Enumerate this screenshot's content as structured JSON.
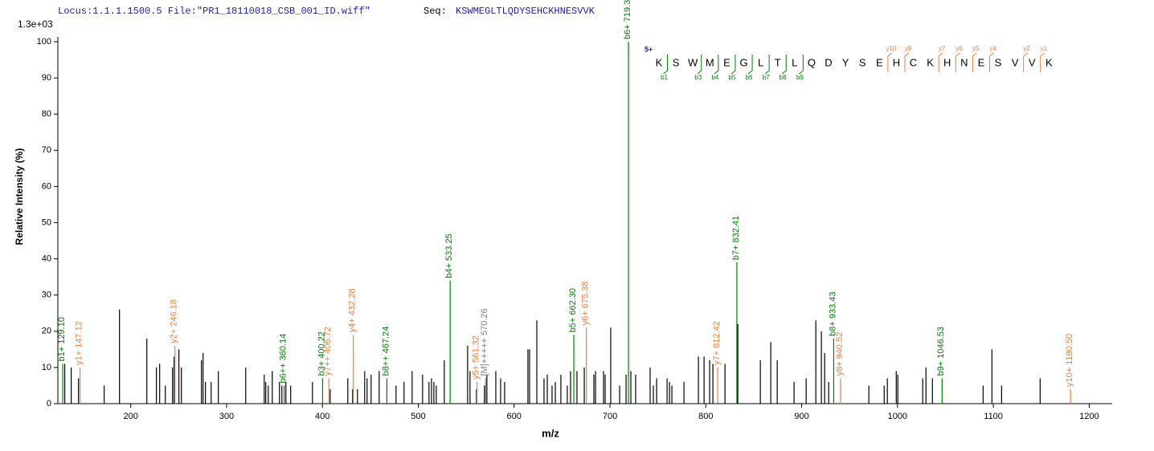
{
  "chart_data": {
    "type": "spectrum",
    "header": "Locus:1.1.1.1500.5 File:\"PR1_18110018_CSB_001_ID.wiff\"",
    "seq_label": "Seq:",
    "sequence_text": "KSWMEGLTLQDYSEHCKHNESVVK",
    "scale_label": "1.3e+03",
    "ylabel": "Relative   Intensity (%)",
    "xlabel": "m/z",
    "xlim": [
      124,
      1224
    ],
    "ylim": [
      0,
      100
    ],
    "xticks": [
      200,
      300,
      400,
      500,
      600,
      700,
      800,
      900,
      1000,
      1100,
      1200
    ],
    "yticks": [
      0,
      10,
      20,
      30,
      40,
      50,
      60,
      70,
      80,
      90,
      100
    ],
    "series": [
      {
        "color": "#000000",
        "x": [
          131.2,
          137.9,
          145.5,
          172.3,
          188.3,
          216.8,
          226.8,
          230.2,
          236.1,
          243.6,
          245.3,
          250.3,
          252.9,
          273.8,
          275.5,
          278.0,
          283.9,
          291.4,
          320.0,
          339.3,
          340.9,
          343.5,
          347.7,
          355.2,
          357.7,
          361.9,
          366.9,
          389.6,
          408.1,
          426.5,
          431.5,
          436.6,
          444.1,
          446.6,
          450.8,
          459.2,
          476.8,
          485.2,
          493.6,
          504.5,
          511.2,
          513.8,
          516.3,
          518.8,
          527.2,
          551.5,
          554.0,
          560.7,
          569.1,
          571.6,
          580.9,
          585.9,
          590.1,
          614.4,
          616.1,
          623.7,
          631.2,
          634.6,
          639.6,
          643.0,
          648.8,
          655.5,
          658.9,
          665.6,
          673.2,
          683.2,
          684.9,
          693.3,
          695.0,
          700.8,
          710.1,
          716.8,
          721.8,
          726.8,
          741.9,
          745.3,
          748.7,
          759.6,
          762.1,
          764.6,
          777.2,
          792.3,
          798.2,
          804.0,
          807.4,
          820.0,
          833.4,
          856.9,
          867.8,
          874.5,
          892.1,
          904.7,
          914.8,
          920.6,
          924.0,
          928.2,
          970.1,
          986.1,
          989.4,
          998.7,
          1000.3,
          1026.3,
          1029.7,
          1036.4,
          1089.3,
          1098.5,
          1108.6,
          1148.8
        ],
        "values": [
          11,
          10,
          7,
          5,
          26,
          18,
          10,
          11,
          5,
          10,
          13,
          15,
          10,
          12,
          14,
          6,
          6,
          9,
          10,
          8,
          6,
          5,
          9,
          6,
          5,
          6,
          5,
          6,
          4,
          7,
          4,
          4,
          9,
          7,
          8,
          9,
          5,
          6,
          9,
          8,
          6,
          7,
          6,
          5,
          12,
          16,
          9,
          4,
          5,
          8,
          9,
          7,
          6,
          15,
          15,
          23,
          7,
          8,
          5,
          6,
          8,
          5,
          9,
          9,
          10,
          8,
          9,
          9,
          8,
          21,
          5,
          8,
          9,
          8,
          10,
          5,
          7,
          7,
          6,
          5,
          6,
          13,
          13,
          12,
          11,
          11,
          22,
          12,
          17,
          12,
          6,
          7,
          23,
          20,
          14,
          6,
          5,
          5,
          7,
          9,
          8,
          7,
          10,
          7,
          5,
          15,
          5,
          7
        ]
      },
      {
        "color": "#008000",
        "x": [
          129.1,
          360.14,
          400.22,
          467.24,
          533.25,
          662.3,
          719.31,
          832.41,
          933.43,
          1046.53
        ],
        "values": [
          11,
          5,
          7,
          7,
          34,
          19,
          100,
          39,
          18,
          7
        ],
        "labels": [
          "b1+ 129.10",
          "b6++ 360.14",
          "b3+ 400.22",
          "b8++ 467.24",
          "b4+ 533.25",
          "b5+ 662.30",
          "b6+ 719.31",
          "b7+ 832.41",
          "b8+ 933.43",
          "b9+ 1046.53"
        ]
      },
      {
        "color": "#ee7f3f",
        "x": [
          147.12,
          246.18,
          406.72,
          432.28,
          561.32,
          675.38,
          812.42,
          940.52,
          1180.5
        ],
        "values": [
          10,
          16,
          7,
          19,
          6,
          21,
          10,
          7,
          4
        ],
        "labels": [
          "y1+ 147.12",
          "y2+ 246.18",
          "y7++ 406.72",
          "y4+ 432.28",
          "y5+ 561.32",
          "y6+ 675.38",
          "y7+ 812.42",
          "y8+ 940.52",
          "y10+ 1180.50"
        ]
      },
      {
        "color": "#808080",
        "x": [
          570.26
        ],
        "values": [
          7
        ],
        "labels": [
          "[M]+++++ 570.26"
        ]
      }
    ],
    "fragment_map": {
      "charge": "5+",
      "residues": [
        "K",
        "S",
        "W",
        "M",
        "E",
        "G",
        "L",
        "T",
        "L",
        "Q",
        "D",
        "Y",
        "S",
        "E",
        "H",
        "C",
        "K",
        "H",
        "N",
        "E",
        "S",
        "V",
        "V",
        "K"
      ],
      "b_marks": [
        "b1",
        null,
        "b3",
        "b4",
        "b5",
        "b6",
        "b7",
        "b8",
        "b9",
        null,
        null,
        null,
        null,
        null,
        null,
        null,
        null,
        null,
        null,
        null,
        null,
        null,
        null
      ],
      "y_marks": [
        null,
        null,
        null,
        null,
        null,
        null,
        null,
        null,
        null,
        null,
        null,
        null,
        null,
        "y10",
        "y9",
        null,
        "y7",
        "y6",
        "y5",
        "y4",
        null,
        "y2",
        "y1"
      ],
      "b_color": "#008000",
      "y_color": "#ee7f3f"
    }
  }
}
